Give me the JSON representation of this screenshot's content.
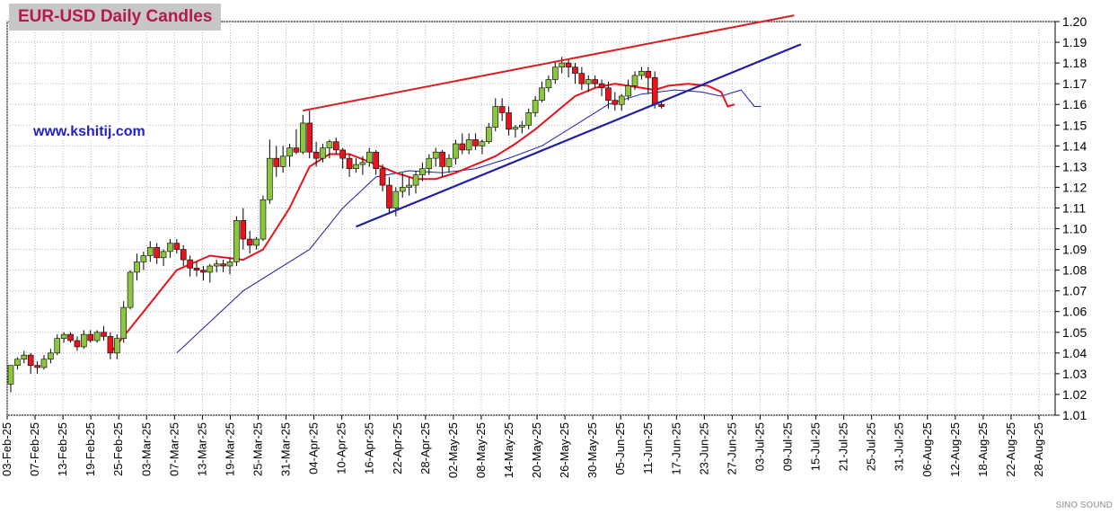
{
  "chart_data": {
    "type": "candlestick",
    "title": "EUR-USD Daily  Candles",
    "website": "www.kshitij.com",
    "watermark": "SINO SOUND",
    "ylim": [
      1.01,
      1.2
    ],
    "yticks": [
      "1.01",
      "1.02",
      "1.03",
      "1.04",
      "1.05",
      "1.06",
      "1.07",
      "1.08",
      "1.09",
      "1.10",
      "1.11",
      "1.12",
      "1.13",
      "1.14",
      "1.15",
      "1.16",
      "1.17",
      "1.18",
      "1.19",
      "1.20"
    ],
    "xticks": [
      "03-Feb-25",
      "07-Feb-25",
      "13-Feb-25",
      "19-Feb-25",
      "25-Feb-25",
      "03-Mar-25",
      "07-Mar-25",
      "13-Mar-25",
      "19-Mar-25",
      "25-Mar-25",
      "31-Mar-25",
      "04-Apr-25",
      "10-Apr-25",
      "16-Apr-25",
      "22-Apr-25",
      "28-Apr-25",
      "02-May-25",
      "08-May-25",
      "14-May-25",
      "20-May-25",
      "26-May-25",
      "30-May-25",
      "05-Jun-25",
      "11-Jun-25",
      "17-Jun-25",
      "23-Jun-25",
      "27-Jun-25",
      "03-Jul-25",
      "09-Jul-25",
      "15-Jul-25",
      "21-Jul-25",
      "25-Jul-25",
      "31-Jul-25",
      "06-Aug-25",
      "12-Aug-25",
      "18-Aug-25",
      "22-Aug-25",
      "28-Aug-25"
    ],
    "colors": {
      "up": "#8cc63f",
      "down": "#e8141c",
      "ema_fast": "#e8141c",
      "ema_slow": "#1f1fa8",
      "resistance": "#d91f1f",
      "support": "#1f1fa8",
      "grid": "#b4b4b4"
    },
    "grid": true,
    "ohlc": [
      [
        1.025,
        1.034,
        1.021,
        1.034
      ],
      [
        1.034,
        1.038,
        1.032,
        1.037
      ],
      [
        1.037,
        1.041,
        1.035,
        1.039
      ],
      [
        1.039,
        1.04,
        1.03,
        1.034
      ],
      [
        1.034,
        1.036,
        1.03,
        1.033
      ],
      [
        1.033,
        1.039,
        1.032,
        1.037
      ],
      [
        1.037,
        1.042,
        1.035,
        1.04
      ],
      [
        1.04,
        1.049,
        1.039,
        1.047
      ],
      [
        1.047,
        1.05,
        1.045,
        1.049
      ],
      [
        1.049,
        1.05,
        1.045,
        1.046
      ],
      [
        1.046,
        1.048,
        1.041,
        1.043
      ],
      [
        1.043,
        1.051,
        1.042,
        1.049
      ],
      [
        1.049,
        1.051,
        1.045,
        1.046
      ],
      [
        1.046,
        1.051,
        1.045,
        1.05
      ],
      [
        1.05,
        1.053,
        1.046,
        1.048
      ],
      [
        1.048,
        1.05,
        1.037,
        1.04
      ],
      [
        1.04,
        1.049,
        1.037,
        1.047
      ],
      [
        1.047,
        1.065,
        1.045,
        1.062
      ],
      [
        1.062,
        1.08,
        1.061,
        1.079
      ],
      [
        1.079,
        1.088,
        1.075,
        1.084
      ],
      [
        1.084,
        1.089,
        1.08,
        1.087
      ],
      [
        1.087,
        1.094,
        1.084,
        1.091
      ],
      [
        1.091,
        1.093,
        1.083,
        1.086
      ],
      [
        1.086,
        1.09,
        1.082,
        1.089
      ],
      [
        1.089,
        1.095,
        1.086,
        1.093
      ],
      [
        1.093,
        1.095,
        1.088,
        1.09
      ],
      [
        1.09,
        1.092,
        1.082,
        1.085
      ],
      [
        1.085,
        1.087,
        1.077,
        1.081
      ],
      [
        1.081,
        1.084,
        1.077,
        1.08
      ],
      [
        1.08,
        1.082,
        1.075,
        1.079
      ],
      [
        1.079,
        1.083,
        1.074,
        1.082
      ],
      [
        1.082,
        1.085,
        1.079,
        1.083
      ],
      [
        1.083,
        1.085,
        1.079,
        1.082
      ],
      [
        1.082,
        1.086,
        1.078,
        1.084
      ],
      [
        1.084,
        1.106,
        1.082,
        1.104
      ],
      [
        1.104,
        1.11,
        1.09,
        1.095
      ],
      [
        1.095,
        1.099,
        1.088,
        1.092
      ],
      [
        1.092,
        1.096,
        1.09,
        1.095
      ],
      [
        1.095,
        1.116,
        1.094,
        1.114
      ],
      [
        1.114,
        1.143,
        1.112,
        1.134
      ],
      [
        1.134,
        1.14,
        1.125,
        1.13
      ],
      [
        1.13,
        1.14,
        1.127,
        1.135
      ],
      [
        1.135,
        1.141,
        1.13,
        1.139
      ],
      [
        1.139,
        1.148,
        1.136,
        1.137
      ],
      [
        1.137,
        1.155,
        1.136,
        1.151
      ],
      [
        1.151,
        1.157,
        1.134,
        1.137
      ],
      [
        1.137,
        1.142,
        1.13,
        1.134
      ],
      [
        1.134,
        1.141,
        1.132,
        1.139
      ],
      [
        1.139,
        1.143,
        1.134,
        1.142
      ],
      [
        1.142,
        1.144,
        1.136,
        1.138
      ],
      [
        1.138,
        1.139,
        1.129,
        1.134
      ],
      [
        1.134,
        1.136,
        1.125,
        1.129
      ],
      [
        1.129,
        1.134,
        1.127,
        1.131
      ],
      [
        1.131,
        1.135,
        1.126,
        1.132
      ],
      [
        1.132,
        1.139,
        1.13,
        1.137
      ],
      [
        1.137,
        1.138,
        1.126,
        1.129
      ],
      [
        1.129,
        1.131,
        1.118,
        1.121
      ],
      [
        1.121,
        1.125,
        1.107,
        1.11
      ],
      [
        1.11,
        1.12,
        1.106,
        1.118
      ],
      [
        1.118,
        1.127,
        1.115,
        1.12
      ],
      [
        1.12,
        1.125,
        1.116,
        1.121
      ],
      [
        1.121,
        1.128,
        1.117,
        1.126
      ],
      [
        1.126,
        1.132,
        1.123,
        1.129
      ],
      [
        1.129,
        1.136,
        1.126,
        1.134
      ],
      [
        1.134,
        1.139,
        1.13,
        1.137
      ],
      [
        1.137,
        1.138,
        1.125,
        1.13
      ],
      [
        1.13,
        1.136,
        1.127,
        1.134
      ],
      [
        1.134,
        1.143,
        1.131,
        1.141
      ],
      [
        1.141,
        1.146,
        1.136,
        1.138
      ],
      [
        1.138,
        1.146,
        1.136,
        1.143
      ],
      [
        1.143,
        1.146,
        1.138,
        1.14
      ],
      [
        1.14,
        1.143,
        1.136,
        1.142
      ],
      [
        1.142,
        1.151,
        1.141,
        1.149
      ],
      [
        1.149,
        1.163,
        1.147,
        1.159
      ],
      [
        1.159,
        1.163,
        1.152,
        1.156
      ],
      [
        1.156,
        1.159,
        1.145,
        1.148
      ],
      [
        1.148,
        1.15,
        1.144,
        1.149
      ],
      [
        1.149,
        1.152,
        1.146,
        1.15
      ],
      [
        1.15,
        1.158,
        1.148,
        1.156
      ],
      [
        1.156,
        1.164,
        1.154,
        1.162
      ],
      [
        1.162,
        1.171,
        1.161,
        1.168
      ],
      [
        1.168,
        1.174,
        1.166,
        1.172
      ],
      [
        1.172,
        1.181,
        1.17,
        1.178
      ],
      [
        1.178,
        1.183,
        1.175,
        1.18
      ],
      [
        1.18,
        1.182,
        1.173,
        1.178
      ],
      [
        1.178,
        1.18,
        1.17,
        1.175
      ],
      [
        1.175,
        1.178,
        1.167,
        1.17
      ],
      [
        1.17,
        1.174,
        1.166,
        1.172
      ],
      [
        1.172,
        1.174,
        1.168,
        1.17
      ],
      [
        1.17,
        1.172,
        1.164,
        1.168
      ],
      [
        1.168,
        1.171,
        1.158,
        1.162
      ],
      [
        1.162,
        1.166,
        1.157,
        1.16
      ],
      [
        1.16,
        1.165,
        1.157,
        1.164
      ],
      [
        1.164,
        1.172,
        1.162,
        1.169
      ],
      [
        1.169,
        1.176,
        1.167,
        1.174
      ],
      [
        1.174,
        1.178,
        1.172,
        1.176
      ],
      [
        1.176,
        1.178,
        1.165,
        1.173
      ],
      [
        1.173,
        1.176,
        1.158,
        1.16
      ],
      [
        1.16,
        1.161,
        1.158,
        1.159
      ]
    ],
    "ema_fast": [
      [
        15,
        1.04
      ],
      [
        20,
        1.06
      ],
      [
        25,
        1.08
      ],
      [
        30,
        1.087
      ],
      [
        35,
        1.085
      ],
      [
        38,
        1.09
      ],
      [
        42,
        1.11
      ],
      [
        45,
        1.13
      ],
      [
        48,
        1.136
      ],
      [
        51,
        1.136
      ],
      [
        55,
        1.131
      ],
      [
        58,
        1.127
      ],
      [
        61,
        1.124
      ],
      [
        64,
        1.124
      ],
      [
        67,
        1.127
      ],
      [
        70,
        1.131
      ],
      [
        73,
        1.135
      ],
      [
        76,
        1.141
      ],
      [
        79,
        1.148
      ],
      [
        82,
        1.156
      ],
      [
        85,
        1.164
      ],
      [
        88,
        1.168
      ],
      [
        91,
        1.17
      ],
      [
        93,
        1.169
      ],
      [
        95,
        1.168
      ],
      [
        97,
        1.167
      ],
      [
        99,
        1.169
      ],
      [
        102,
        1.17
      ],
      [
        105,
        1.169
      ],
      [
        107,
        1.166
      ],
      [
        108,
        1.159
      ],
      [
        109,
        1.16
      ]
    ],
    "ema_slow": [
      [
        25,
        1.04
      ],
      [
        30,
        1.055
      ],
      [
        35,
        1.07
      ],
      [
        40,
        1.08
      ],
      [
        45,
        1.09
      ],
      [
        50,
        1.11
      ],
      [
        55,
        1.125
      ],
      [
        60,
        1.128
      ],
      [
        65,
        1.127
      ],
      [
        70,
        1.129
      ],
      [
        75,
        1.134
      ],
      [
        80,
        1.14
      ],
      [
        85,
        1.15
      ],
      [
        90,
        1.16
      ],
      [
        95,
        1.165
      ],
      [
        100,
        1.167
      ],
      [
        104,
        1.166
      ],
      [
        107,
        1.164
      ],
      [
        110,
        1.167
      ],
      [
        112,
        1.159
      ],
      [
        113,
        1.159
      ]
    ],
    "resistance": [
      [
        44,
        1.157
      ],
      [
        118,
        1.203
      ]
    ],
    "support": [
      [
        52,
        1.101
      ],
      [
        119,
        1.189
      ]
    ]
  }
}
